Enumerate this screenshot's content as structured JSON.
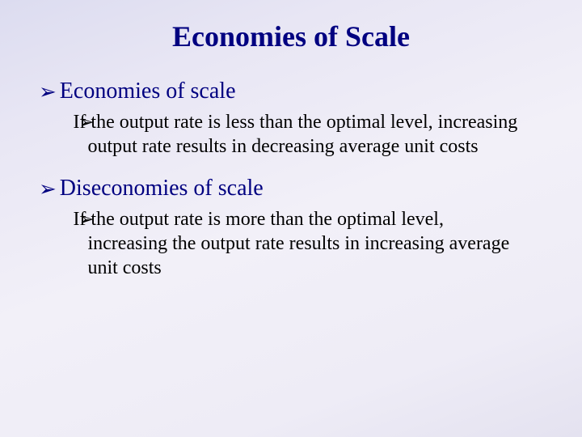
{
  "slide": {
    "title": "Economies of Scale",
    "bullet_glyph": "➢",
    "title_color": "#000080",
    "heading_color": "#000080",
    "body_color": "#000000",
    "background_gradient": [
      "#dcdcf0",
      "#f2f0f8",
      "#e4e2f0"
    ],
    "title_fontsize": 36,
    "heading_fontsize": 28,
    "body_fontsize": 24,
    "items": [
      {
        "heading": "Economies of scale",
        "sub": " If the output rate is less than the optimal level, increasing output rate results in decreasing average unit costs"
      },
      {
        "heading": "Diseconomies of scale",
        "sub": " If the output rate is more than the optimal level, increasing the output rate results in increasing average unit costs"
      }
    ]
  }
}
